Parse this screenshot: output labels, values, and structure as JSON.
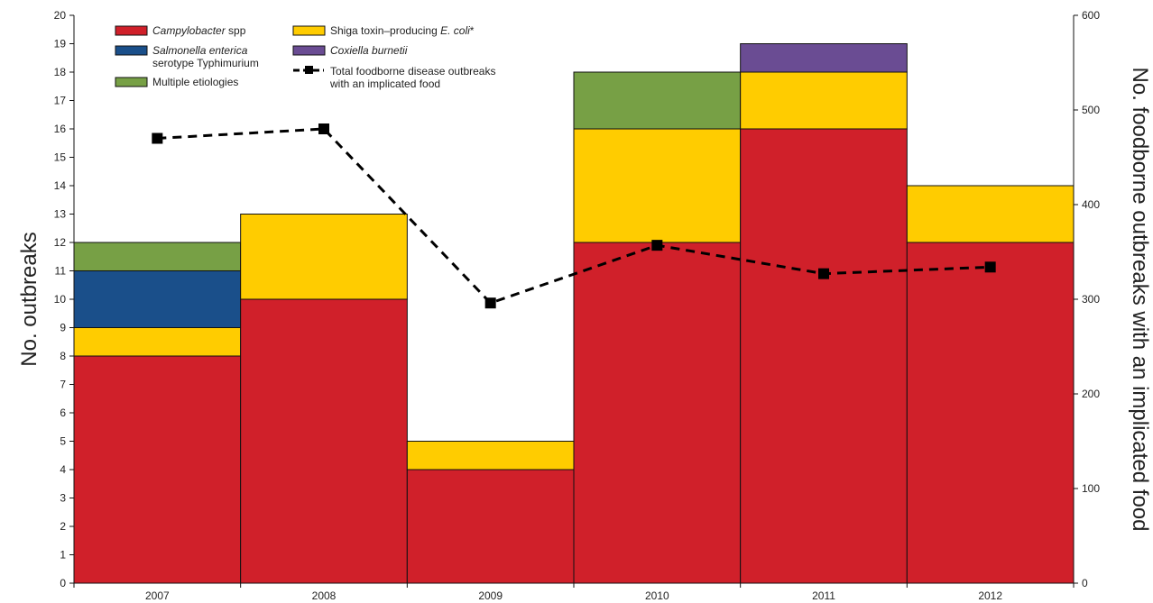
{
  "chart_data": {
    "type": "bar",
    "stacked": true,
    "categories": [
      "2007",
      "2008",
      "2009",
      "2010",
      "2011",
      "2012"
    ],
    "series": [
      {
        "name": "Campylobacter spp",
        "italic_part": "Campylobacter",
        "color": "#d0202a",
        "values": [
          8,
          10,
          4,
          12,
          16,
          12
        ]
      },
      {
        "name": "Shiga toxin–producing E. coli*",
        "color": "#ffcc00",
        "values": [
          1,
          3,
          1,
          4,
          2,
          2
        ]
      },
      {
        "name": "Salmonella enterica serotype Typhimurium",
        "color": "#1a4f8a",
        "values": [
          2,
          0,
          0,
          0,
          0,
          0
        ]
      },
      {
        "name": "Multiple etiologies",
        "color": "#77a045",
        "values": [
          1,
          0,
          0,
          2,
          0,
          0
        ]
      },
      {
        "name": "Coxiella burnetii",
        "color": "#6a4c93",
        "values": [
          0,
          0,
          0,
          0,
          1,
          0
        ]
      }
    ],
    "line_series": {
      "name": "Total foodborne disease outbreaks with an implicated food",
      "axis": "right",
      "values": [
        470,
        480,
        296,
        357,
        327,
        334
      ]
    },
    "ylabel": "No. outbreaks",
    "y2label": "No. foodborne outbreaks with an implicated food",
    "ylim": [
      0,
      20
    ],
    "y2lim": [
      0,
      600
    ],
    "y_ticks": [
      0,
      1,
      2,
      3,
      4,
      5,
      6,
      7,
      8,
      9,
      10,
      11,
      12,
      13,
      14,
      15,
      16,
      17,
      18,
      19,
      20
    ],
    "y2_ticks": [
      0,
      100,
      200,
      300,
      400,
      500,
      600
    ],
    "legend": {
      "placement": "top-left",
      "items": [
        {
          "series": 0,
          "line1_italic": "Campylobacter",
          "line1_rest": " spp",
          "line2": ""
        },
        {
          "series": 1,
          "line1_italic": "",
          "line1_rest": "Shiga toxin–producing ",
          "line1_italic_end": "E. coli",
          "line1_tail": "*",
          "line2": ""
        },
        {
          "series": 2,
          "line1_italic": "Salmonella enterica",
          "line1_rest": "",
          "line2": "serotype Typhimurium"
        },
        {
          "series": 4,
          "line1_italic": "Coxiella burnetii",
          "line1_rest": "",
          "line2": ""
        },
        {
          "series": 3,
          "line1_italic": "",
          "line1_rest": "Multiple etiologies",
          "line2": ""
        },
        {
          "series": "line",
          "line1_italic": "",
          "line1_rest": "Total foodborne disease outbreaks",
          "line2": "with an implicated food"
        }
      ]
    },
    "grid": false
  }
}
